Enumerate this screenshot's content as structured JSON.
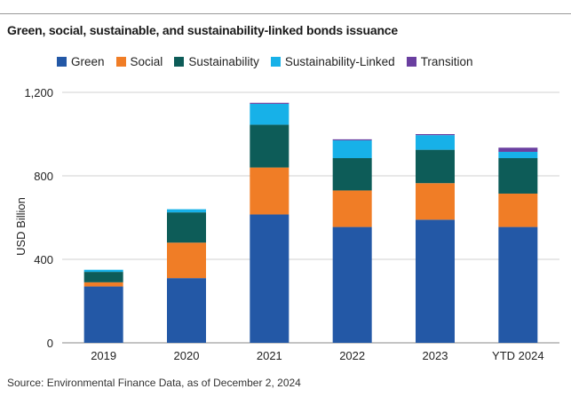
{
  "title": "Green, social, sustainable, and sustainability-linked bonds issuance",
  "source": "Source: Environmental Finance Data, as of December 2, 2024",
  "colors": {
    "Green": "#2358a6",
    "Social": "#f07d26",
    "Sustainability": "#0d5c58",
    "Sustainability-Linked": "#17b1e8",
    "Transition": "#6a3fa0"
  },
  "chart_data": {
    "type": "bar",
    "stacked": true,
    "title": "Green, social, sustainable, and sustainability-linked bonds issuance",
    "xlabel": "",
    "ylabel": "USD Billion",
    "ylim": [
      0,
      1200
    ],
    "yticks": [
      0,
      400,
      800,
      1200
    ],
    "ytick_labels": [
      "0",
      "400",
      "800",
      "1,200"
    ],
    "grid": "horizontal",
    "legend_position": "top",
    "categories": [
      "2019",
      "2020",
      "2021",
      "2022",
      "2023",
      "YTD 2024"
    ],
    "series": [
      {
        "name": "Green",
        "values": [
          270,
          310,
          615,
          555,
          590,
          555
        ]
      },
      {
        "name": "Social",
        "values": [
          20,
          170,
          225,
          175,
          175,
          160
        ]
      },
      {
        "name": "Sustainability",
        "values": [
          50,
          145,
          205,
          155,
          160,
          170
        ]
      },
      {
        "name": "Sustainability-Linked",
        "values": [
          10,
          15,
          100,
          85,
          70,
          30
        ]
      },
      {
        "name": "Transition",
        "values": [
          0,
          0,
          5,
          5,
          5,
          20
        ]
      }
    ]
  }
}
